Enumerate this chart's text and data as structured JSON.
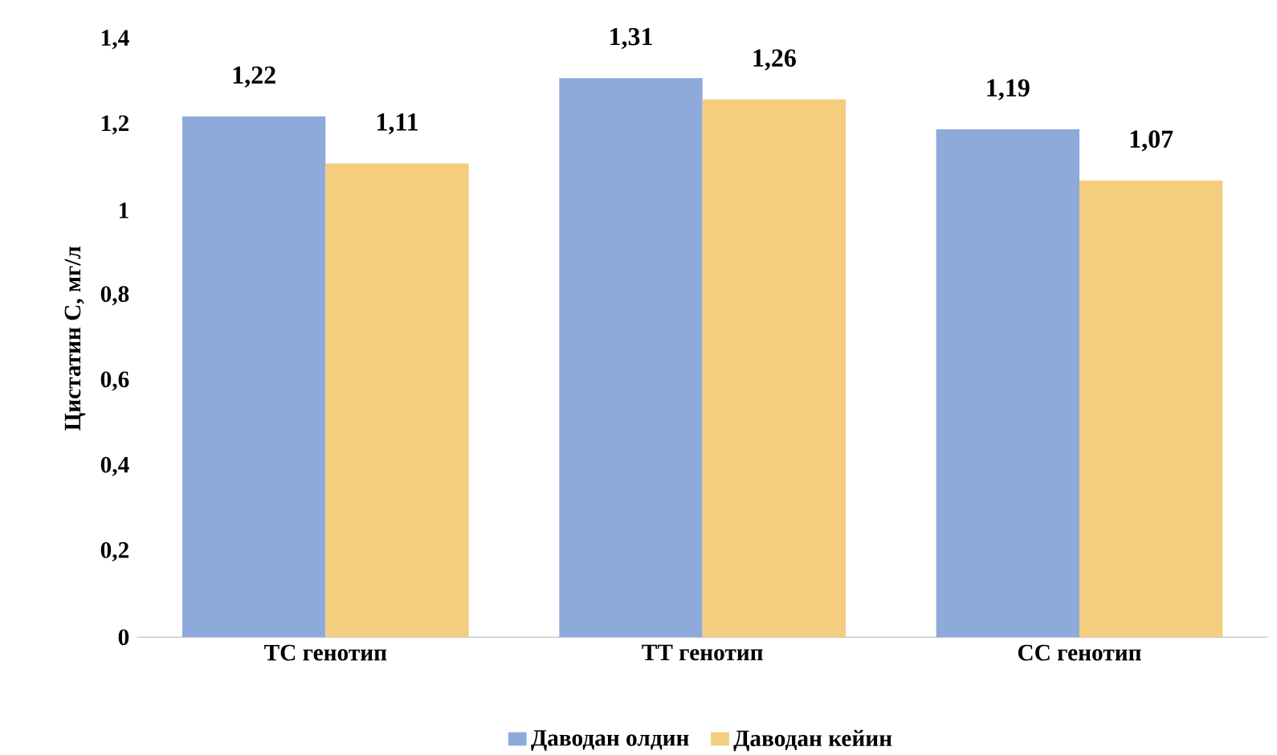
{
  "chart_data": {
    "type": "bar",
    "ylabel": "Цистатин С, мг/л",
    "categories": [
      "ТС генотип",
      "ТТ генотип",
      "СС генотип"
    ],
    "series": [
      {
        "name": "Даводан олдин",
        "color": "#8eaadb",
        "values": [
          1.22,
          1.31,
          1.19
        ],
        "value_labels": [
          "1,22",
          "1,31",
          "1,19"
        ]
      },
      {
        "name": "Даводан кейин",
        "color": "#f5cd7e",
        "values": [
          1.11,
          1.26,
          1.07
        ],
        "value_labels": [
          "1,11",
          "1,26",
          "1,07"
        ]
      }
    ],
    "ylim": [
      0,
      1.4
    ],
    "yticks": [
      0,
      {
        "value": 0.2,
        "label": "0,2"
      },
      {
        "value": 0.4,
        "label": "0,4"
      },
      {
        "value": 0.6,
        "label": "0,6"
      },
      {
        "value": 0.8,
        "label": "0,8"
      },
      1,
      {
        "value": 1.2,
        "label": "1,2"
      },
      {
        "value": 1.4,
        "label": "1,4"
      }
    ],
    "legend": "bottom"
  }
}
